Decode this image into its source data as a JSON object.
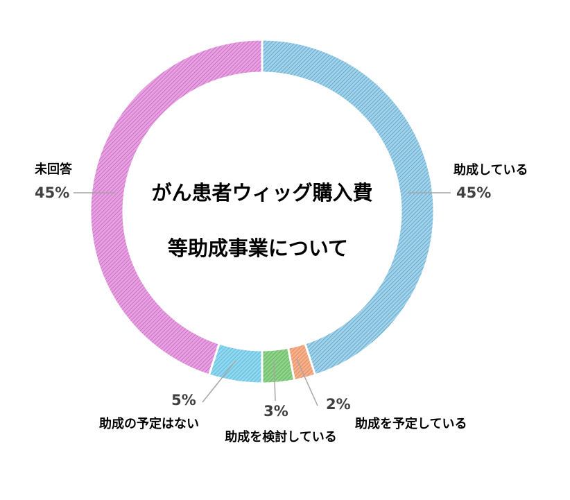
{
  "chart_data": {
    "type": "pie",
    "donut": true,
    "title_lines": [
      "がん患者ウィッグ購入費",
      "等助成事業について"
    ],
    "categories": [
      "助成している",
      "助成を予定している",
      "助成を検討している",
      "助成の予定はない",
      "未回答"
    ],
    "values": [
      45,
      2,
      3,
      5,
      45
    ],
    "value_labels": [
      "45%",
      "2%",
      "3%",
      "5%",
      "45%"
    ],
    "colors": [
      "#9fd3ec",
      "#f6b08c",
      "#8fd28a",
      "#8fd8ef",
      "#e9a0e3"
    ],
    "edge_colors": [
      "#3a7fa6",
      "#d06b35",
      "#3f9a3c",
      "#3a9fc6",
      "#a947a3"
    ],
    "legend": "none"
  }
}
